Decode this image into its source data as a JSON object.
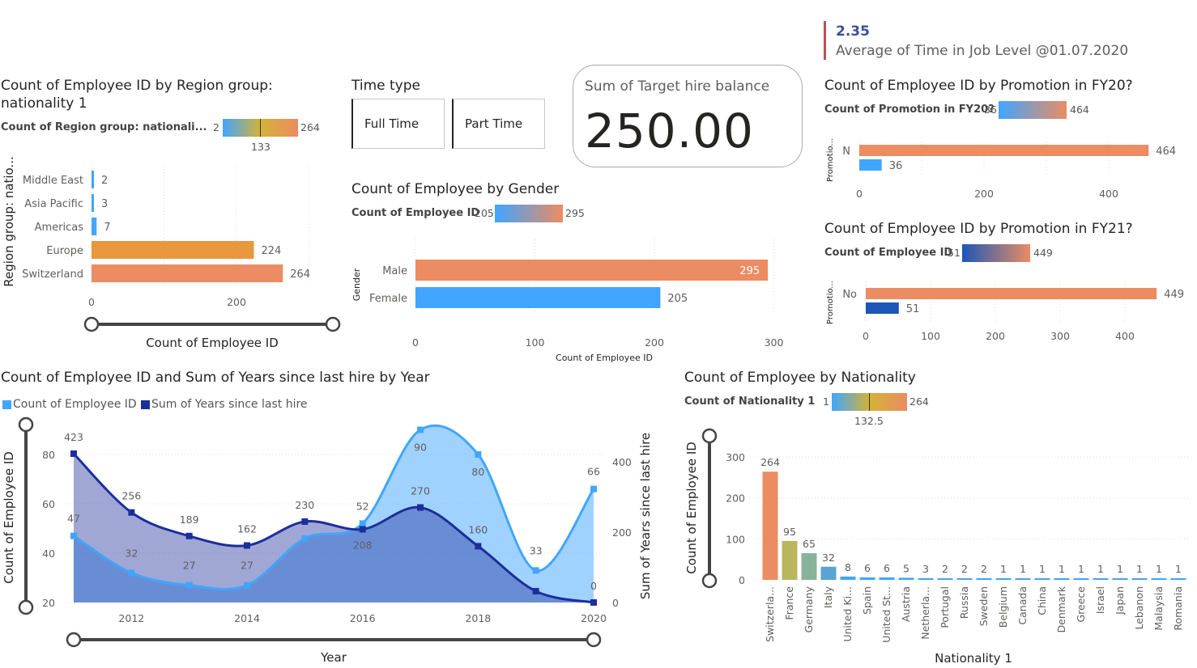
{
  "kpi_top": {
    "value": "2.35",
    "label": "Average of Time in Job Level @01.07.2020",
    "accent": "#c0504d"
  },
  "slicer": {
    "title": "Time type",
    "options": [
      "Full Time",
      "Part Time"
    ]
  },
  "card": {
    "title": "Sum of Target hire balance",
    "value": "250.00"
  },
  "colors": {
    "orange": "#eb8c62",
    "lightorange": "#e8973f",
    "blue": "#41a5ff",
    "navy": "#1c2e9c",
    "slider": "#444444"
  },
  "region_chart": {
    "title": "Count of Employee ID by Region group: nationality 1",
    "title_line1": "Count of Employee ID by Region group:",
    "title_line2": "nationality 1",
    "legend_label": "Count of Region group: nationali...",
    "legend_min": "2",
    "legend_max": "264",
    "legend_mid": "133",
    "ylabel": "Region group: natio...",
    "xlabel": "Count of Employee ID",
    "xticks": [
      "0",
      "200"
    ]
  },
  "gender_chart": {
    "title": "Count of Employee by Gender",
    "legend_label": "Count of Employee ID",
    "legend_min": "205",
    "legend_max": "295",
    "ylabel": "Gender",
    "xlabel": "Count of Employee ID",
    "xticks": [
      "0",
      "100",
      "200",
      "300"
    ]
  },
  "fy20_chart": {
    "title": "Count of Employee ID by Promotion in FY20?",
    "legend_label": "Count of Promotion in FY20?",
    "legend_min": "36",
    "legend_max": "464",
    "ylabel": "Promotio...",
    "xticks": [
      "0",
      "200",
      "400"
    ]
  },
  "fy21_chart": {
    "title": "Count of Employee ID by Promotion in FY21?",
    "legend_label": "Count of Employee ID",
    "legend_min": "51",
    "legend_max": "449",
    "ylabel": "Promotio...",
    "xticks": [
      "0",
      "100",
      "200",
      "300",
      "400"
    ]
  },
  "combo_chart": {
    "title": "Count of Employee ID and Sum of Years since last hire by Year",
    "legend": [
      "Count of Employee ID",
      "Sum of Years since last hire"
    ],
    "ylabel_left": "Count of Employee ID",
    "ylabel_right": "Sum of Years since last hire",
    "xlabel": "Year",
    "left_ticks": [
      "80",
      "60",
      "40",
      "20"
    ],
    "right_ticks": [
      "400",
      "200",
      "0"
    ],
    "x_ticks": [
      "2012",
      "2014",
      "2016",
      "2018",
      "2020"
    ]
  },
  "nationality_chart": {
    "title": "Count of Employee by Nationality",
    "legend_label": "Count of Nationality 1",
    "legend_min": "1",
    "legend_max": "264",
    "legend_mid": "132.5",
    "ylabel": "Count of Employee ID",
    "xlabel": "Nationality 1",
    "yticks": [
      "300",
      "200",
      "100",
      "0"
    ]
  },
  "chart_data": [
    {
      "type": "bar",
      "title": "Count of Employee ID by Region group: nationality 1",
      "categories": [
        "Middle East",
        "Asia Pacific",
        "Americas",
        "Europe",
        "Switzerland"
      ],
      "values": [
        2,
        3,
        7,
        224,
        264
      ],
      "xlabel": "Count of Employee ID",
      "ylabel": "Region group: natio...",
      "xlim": [
        0,
        300
      ]
    },
    {
      "type": "bar",
      "title": "Count of Employee by Gender",
      "categories": [
        "Male",
        "Female"
      ],
      "values": [
        295,
        205
      ],
      "xlabel": "Count of Employee ID",
      "ylabel": "Gender",
      "xlim": [
        0,
        300
      ]
    },
    {
      "type": "bar",
      "title": "Count of Employee ID by Promotion in FY20?",
      "categories": [
        "N",
        ""
      ],
      "values": [
        464,
        36
      ],
      "ylabel": "Promotio...",
      "xlim": [
        0,
        464
      ]
    },
    {
      "type": "bar",
      "title": "Count of Employee ID by Promotion in FY21?",
      "categories": [
        "No",
        ""
      ],
      "values": [
        449,
        51
      ],
      "ylabel": "Promotio...",
      "xlim": [
        0,
        449
      ]
    },
    {
      "type": "area",
      "title": "Count of Employee ID and Sum of Years since last hire by Year",
      "x": [
        2011,
        2012,
        2013,
        2014,
        2015,
        2016,
        2017,
        2018,
        2019,
        2020
      ],
      "series": [
        {
          "name": "Count of Employee ID",
          "axis": "left",
          "values": [
            47,
            32,
            27,
            27,
            46,
            52,
            90,
            80,
            33,
            66
          ],
          "labels": [
            "47",
            "32",
            "27",
            "27",
            "",
            "52",
            "90",
            "80",
            "33",
            "66"
          ]
        },
        {
          "name": "Sum of Years since last hire",
          "axis": "right",
          "values": [
            423,
            256,
            189,
            162,
            230,
            208,
            270,
            160,
            32,
            0
          ],
          "labels": [
            "423",
            "256",
            "189",
            "162",
            "230",
            "208",
            "270",
            "160",
            "",
            "0"
          ]
        }
      ],
      "xlabel": "Year",
      "ylabel": "Count of Employee ID",
      "ylabel_right": "Sum of Years since last hire",
      "ylim": [
        20,
        95
      ],
      "ylim_right": [
        0,
        470
      ]
    },
    {
      "type": "bar",
      "title": "Count of Employee by Nationality",
      "categories": [
        "Switzerla...",
        "France",
        "Germany",
        "Italy",
        "United Ki...",
        "Spain",
        "United St...",
        "Austria",
        "Netherla...",
        "Portugal",
        "Russia",
        "Sweden",
        "Belgium",
        "Canada",
        "China",
        "Denmark",
        "Greece",
        "Israel",
        "Japan",
        "Lebanon",
        "Malaysia",
        "Romania"
      ],
      "values": [
        264,
        95,
        65,
        32,
        8,
        6,
        6,
        5,
        3,
        2,
        2,
        2,
        1,
        1,
        1,
        1,
        1,
        1,
        1,
        1,
        1,
        1
      ],
      "xlabel": "Nationality 1",
      "ylabel": "Count of Employee ID",
      "ylim": [
        0,
        300
      ]
    }
  ]
}
